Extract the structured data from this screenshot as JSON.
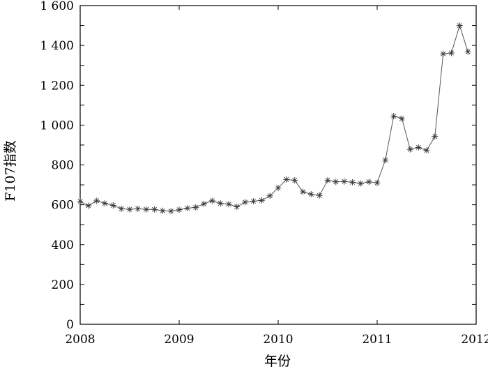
{
  "chart_data": {
    "type": "line",
    "xlabel": "年份",
    "ylabel": "F107指数",
    "xlim": [
      2008,
      2012
    ],
    "ylim": [
      0,
      1600
    ],
    "grid": false,
    "legend": "none",
    "line_color": "#555555",
    "marker": "asterisk",
    "x_ticks": [
      2008,
      2009,
      2010,
      2011,
      2012
    ],
    "x_tick_labels": [
      "2008",
      "2009",
      "2010",
      "2011",
      "2012"
    ],
    "y_ticks": [
      0,
      100,
      200,
      300,
      400,
      500,
      600,
      700,
      800,
      900,
      1000,
      1100,
      1200,
      1300,
      1400,
      1500,
      1600
    ],
    "y_tick_labels": [
      "0",
      "100",
      "200",
      "300",
      "400",
      "500",
      "600",
      "700",
      "800",
      "900",
      "1 000",
      "1 100",
      "1 200",
      "1 300",
      "1 400",
      "1 500",
      "1 600"
    ],
    "series": [
      {
        "x": [
          2008.0,
          2008.083,
          2008.167,
          2008.25,
          2008.333,
          2008.417,
          2008.5,
          2008.583,
          2008.667,
          2008.75,
          2008.833,
          2008.917,
          2009.0,
          2009.083,
          2009.167,
          2009.25,
          2009.333,
          2009.417,
          2009.5,
          2009.583,
          2009.667,
          2009.75,
          2009.833,
          2009.917,
          2010.0,
          2010.083,
          2010.167,
          2010.25,
          2010.333,
          2010.417,
          2010.5,
          2010.583,
          2010.667,
          2010.75,
          2010.833,
          2010.917,
          2011.0,
          2011.083,
          2011.167,
          2011.25,
          2011.333,
          2011.417,
          2011.5,
          2011.583,
          2011.667,
          2011.75,
          2011.833,
          2011.917
        ],
        "values": [
          617,
          595,
          620,
          607,
          597,
          580,
          577,
          580,
          577,
          577,
          570,
          568,
          575,
          583,
          587,
          605,
          620,
          607,
          603,
          590,
          613,
          618,
          622,
          645,
          685,
          727,
          723,
          665,
          653,
          647,
          723,
          715,
          717,
          713,
          707,
          715,
          710,
          825,
          1045,
          1033,
          878,
          888,
          873,
          943,
          1358,
          1362,
          1500,
          1368
        ]
      }
    ]
  }
}
